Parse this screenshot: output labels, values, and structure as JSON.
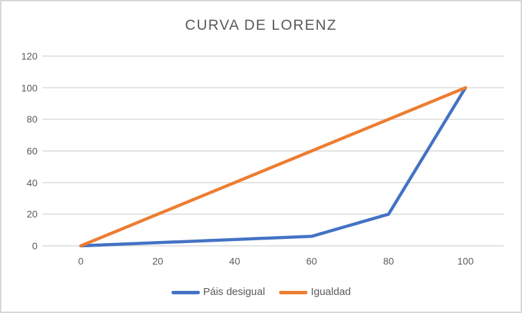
{
  "title": "CURVA DE LORENZ",
  "colors": {
    "series_unequal": "#4472C4",
    "series_equality": "#ED7D31",
    "gridline": "#D9D9D9",
    "text": "#595959",
    "frame_border": "#D6D6D6",
    "background": "#FFFFFF"
  },
  "chart_data": {
    "type": "line",
    "title": "CURVA DE LORENZ",
    "categories": [
      0,
      20,
      40,
      60,
      80,
      100
    ],
    "x_tick_labels": [
      "0",
      "20",
      "40",
      "60",
      "80",
      "100"
    ],
    "y_tick_labels": [
      "0",
      "20",
      "40",
      "60",
      "80",
      "100",
      "120"
    ],
    "series": [
      {
        "name": "Páis desigual",
        "color": "#4472C4",
        "values": [
          0,
          2,
          4,
          6,
          20,
          100
        ]
      },
      {
        "name": "Igualdad",
        "color": "#ED7D31",
        "values": [
          0,
          20,
          40,
          60,
          80,
          100
        ]
      }
    ],
    "xlabel": "",
    "ylabel": "",
    "ylim": [
      0,
      120
    ],
    "y_step": 20,
    "grid": "horizontal",
    "legend_position": "bottom"
  }
}
